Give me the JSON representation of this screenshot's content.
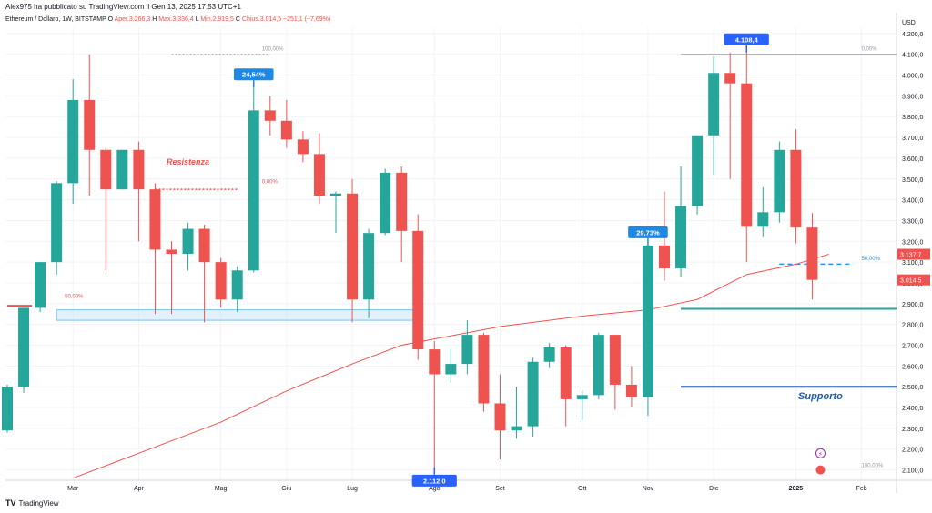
{
  "header": {
    "published": "Alex975 ha pubblicato su TradingView.com il Gen 13, 2025 17:53 UTC+1",
    "symbol": "Ethereum / Dollaro, 1W, BITSTAMP",
    "o_label": "O",
    "open": "Aper.3.266,3",
    "high": "Max.3.336,4",
    "low": "Min.2.919,5",
    "close": "Chius.3.014,5",
    "change": "−251,1 (−7,69%)"
  },
  "footer": {
    "brand": "TradingView"
  },
  "chart_data": {
    "type": "candlestick",
    "currency": "USD",
    "y_range": [
      2050,
      4230
    ],
    "y_ticks": [
      "2.100,0",
      "2.200,0",
      "2.300,0",
      "2.400,0",
      "2.500,0",
      "2.600,0",
      "2.700,0",
      "2.800,0",
      "2.900,0",
      "3.000,0",
      "3.100,0",
      "3.200,0",
      "3.300,0",
      "3.400,0",
      "3.500,0",
      "3.600,0",
      "3.700,0",
      "3.800,0",
      "3.900,0",
      "4.000,0",
      "4.100,0",
      "4.200,0"
    ],
    "x_ticks": [
      {
        "label": "Mar",
        "week": 4
      },
      {
        "label": "Apr",
        "week": 8
      },
      {
        "label": "Mag",
        "week": 13
      },
      {
        "label": "Giu",
        "week": 17
      },
      {
        "label": "Lug",
        "week": 21
      },
      {
        "label": "Ago",
        "week": 26
      },
      {
        "label": "Set",
        "week": 30
      },
      {
        "label": "Ott",
        "week": 35
      },
      {
        "label": "Nov",
        "week": 39
      },
      {
        "label": "Dic",
        "week": 43
      },
      {
        "label": "2025",
        "week": 48
      },
      {
        "label": "Feb",
        "week": 52
      }
    ],
    "candles": [
      {
        "o": 2290,
        "h": 2510,
        "l": 2280,
        "c": 2500
      },
      {
        "o": 2500,
        "h": 2880,
        "l": 2470,
        "c": 2880
      },
      {
        "o": 2880,
        "h": 3100,
        "l": 2860,
        "c": 3100
      },
      {
        "o": 3100,
        "h": 3490,
        "l": 3040,
        "c": 3480
      },
      {
        "o": 3480,
        "h": 3980,
        "l": 3380,
        "c": 3880
      },
      {
        "o": 3880,
        "h": 4100,
        "l": 3420,
        "c": 3640
      },
      {
        "o": 3640,
        "h": 3650,
        "l": 3060,
        "c": 3450
      },
      {
        "o": 3450,
        "h": 3640,
        "l": 3450,
        "c": 3640
      },
      {
        "o": 3640,
        "h": 3680,
        "l": 3200,
        "c": 3450
      },
      {
        "o": 3450,
        "h": 3480,
        "l": 2850,
        "c": 3160
      },
      {
        "o": 3160,
        "h": 3200,
        "l": 2850,
        "c": 3140
      },
      {
        "o": 3140,
        "h": 3290,
        "l": 3060,
        "c": 3260
      },
      {
        "o": 3260,
        "h": 3280,
        "l": 2810,
        "c": 3100
      },
      {
        "o": 3100,
        "h": 3120,
        "l": 2880,
        "c": 2920
      },
      {
        "o": 2920,
        "h": 3080,
        "l": 2860,
        "c": 3060
      },
      {
        "o": 3060,
        "h": 3940,
        "l": 3050,
        "c": 3830
      },
      {
        "o": 3830,
        "h": 3900,
        "l": 3710,
        "c": 3780
      },
      {
        "o": 3780,
        "h": 3880,
        "l": 3650,
        "c": 3690
      },
      {
        "o": 3690,
        "h": 3730,
        "l": 3580,
        "c": 3620
      },
      {
        "o": 3620,
        "h": 3720,
        "l": 3380,
        "c": 3420
      },
      {
        "o": 3420,
        "h": 3440,
        "l": 3240,
        "c": 3430
      },
      {
        "o": 3430,
        "h": 3500,
        "l": 2810,
        "c": 2920
      },
      {
        "o": 2920,
        "h": 3260,
        "l": 2830,
        "c": 3240
      },
      {
        "o": 3240,
        "h": 3550,
        "l": 3230,
        "c": 3530
      },
      {
        "o": 3530,
        "h": 3560,
        "l": 3100,
        "c": 3250
      },
      {
        "o": 3250,
        "h": 3330,
        "l": 2630,
        "c": 2680
      },
      {
        "o": 2680,
        "h": 2720,
        "l": 2112,
        "c": 2560
      },
      {
        "o": 2560,
        "h": 2680,
        "l": 2520,
        "c": 2610
      },
      {
        "o": 2610,
        "h": 2820,
        "l": 2560,
        "c": 2750
      },
      {
        "o": 2750,
        "h": 2760,
        "l": 2380,
        "c": 2420
      },
      {
        "o": 2420,
        "h": 2560,
        "l": 2150,
        "c": 2290
      },
      {
        "o": 2290,
        "h": 2500,
        "l": 2250,
        "c": 2310
      },
      {
        "o": 2310,
        "h": 2640,
        "l": 2260,
        "c": 2620
      },
      {
        "o": 2620,
        "h": 2710,
        "l": 2590,
        "c": 2690
      },
      {
        "o": 2690,
        "h": 2700,
        "l": 2310,
        "c": 2440
      },
      {
        "o": 2440,
        "h": 2480,
        "l": 2340,
        "c": 2460
      },
      {
        "o": 2460,
        "h": 2760,
        "l": 2440,
        "c": 2750
      },
      {
        "o": 2750,
        "h": 2750,
        "l": 2390,
        "c": 2510
      },
      {
        "o": 2510,
        "h": 2600,
        "l": 2400,
        "c": 2450
      },
      {
        "o": 2450,
        "h": 3180,
        "l": 2360,
        "c": 3180
      },
      {
        "o": 3180,
        "h": 3440,
        "l": 3010,
        "c": 3070
      },
      {
        "o": 3070,
        "h": 3560,
        "l": 3030,
        "c": 3370
      },
      {
        "o": 3370,
        "h": 3710,
        "l": 3330,
        "c": 3710
      },
      {
        "o": 3710,
        "h": 4090,
        "l": 3520,
        "c": 4010
      },
      {
        "o": 4010,
        "h": 4108.4,
        "l": 3500,
        "c": 3960
      },
      {
        "o": 3960,
        "h": 4108.4,
        "l": 3100,
        "c": 3270
      },
      {
        "o": 3270,
        "h": 3460,
        "l": 3220,
        "c": 3340
      },
      {
        "o": 3340,
        "h": 3680,
        "l": 3290,
        "c": 3640
      },
      {
        "o": 3640,
        "h": 3740,
        "l": 3190,
        "c": 3266.3
      },
      {
        "o": 3266.3,
        "h": 3336.4,
        "l": 2919.5,
        "c": 3014.5
      }
    ],
    "ma_series": [
      {
        "week": 4,
        "v": 2060
      },
      {
        "week": 8,
        "v": 2180
      },
      {
        "week": 13,
        "v": 2330
      },
      {
        "week": 17,
        "v": 2480
      },
      {
        "week": 21,
        "v": 2610
      },
      {
        "week": 24,
        "v": 2700
      },
      {
        "week": 26,
        "v": 2730
      },
      {
        "week": 30,
        "v": 2790
      },
      {
        "week": 35,
        "v": 2840
      },
      {
        "week": 39,
        "v": 2870
      },
      {
        "week": 42,
        "v": 2920
      },
      {
        "week": 45,
        "v": 3040
      },
      {
        "week": 48,
        "v": 3090
      },
      {
        "week": 50,
        "v": 3137.7
      }
    ],
    "lines": [
      {
        "name": "support-line",
        "y": 2500,
        "color": "#1e5bb8",
        "from_week": 41
      },
      {
        "name": "mid-line",
        "y": 2875,
        "color": "#26a69a",
        "from_week": 41
      },
      {
        "name": "high-fib-line",
        "y": 4100,
        "color": "#b2b5be",
        "from_week": 41
      },
      {
        "name": "left-red-line",
        "y": 2890,
        "color": "#ef5350",
        "from_week": 0,
        "to_week": 1.5
      }
    ],
    "dashed_lines": [
      {
        "name": "resistance-dotted",
        "y": 3450,
        "color": "#ef5350",
        "from_week": 9,
        "to_week": 14
      },
      {
        "name": "fifty-percent-dashed",
        "y": 3090,
        "color": "#2196f3",
        "from_week": 47,
        "to_week": 51.5
      },
      {
        "name": "top-dotted",
        "y": 4100,
        "color": "#b2b5be",
        "from_week": 10,
        "to_week": 16
      }
    ],
    "zone": {
      "name": "support-zone",
      "y_low": 2820,
      "y_high": 2870,
      "from_week": 3,
      "to_week": 25,
      "color": "#bde0f7"
    },
    "labels": [
      {
        "name": "fib-top-label-left",
        "text": "100,00%",
        "week": 15.5,
        "y": 4110,
        "color": "#9598a1"
      },
      {
        "name": "fib-top-label-right",
        "text": "0,00%",
        "week": 52,
        "y": 4110,
        "color": "#9598a1"
      },
      {
        "name": "resistance-percent-label",
        "text": "0,00%",
        "week": 15.5,
        "y": 3470,
        "color": "#ef5350"
      },
      {
        "name": "left-percent-label",
        "text": "50,00%",
        "week": 3.5,
        "y": 2920,
        "color": "#ef5350"
      },
      {
        "name": "right-percent-label",
        "text": "50,00%",
        "week": 52,
        "y": 3100,
        "color": "#2196f3"
      },
      {
        "name": "bottom-percent-label",
        "text": "100,00%",
        "week": 52,
        "y": 2105,
        "color": "#9598a1"
      }
    ],
    "annotations": [
      {
        "name": "resistance-text",
        "text": "Resistenza",
        "week": 11,
        "y": 3570,
        "color": "#ef5350"
      },
      {
        "name": "support-text",
        "text": "Supporto",
        "week": 49.5,
        "y": 2440,
        "color": "#1e5bb8"
      }
    ],
    "callouts": [
      {
        "name": "callout-4108",
        "text": "4.108,4",
        "week": 45,
        "y": 4108.4,
        "pointer": "down",
        "color": "#2962ff"
      },
      {
        "name": "callout-2112",
        "text": "2.112,0",
        "week": 26,
        "y": 2112,
        "pointer": "up",
        "color": "#2962ff"
      },
      {
        "name": "callout-2454",
        "text": "24,54%",
        "week": 15,
        "y": 3940,
        "pointer": "down",
        "color": "#1e88e5"
      },
      {
        "name": "callout-2973",
        "text": "29,73%",
        "week": 39,
        "y": 3180,
        "pointer": "down",
        "color": "#1e88e5"
      }
    ],
    "price_tags": [
      {
        "name": "ma-price-tag",
        "text": "3.137,7",
        "y": 3137.7,
        "color": "#ef5350"
      },
      {
        "name": "close-price-tag",
        "text": "3.014,5",
        "y": 3014.5,
        "color": "#ef5350"
      }
    ],
    "colors": {
      "up": "#26a69a",
      "down": "#ef5350",
      "ma": "#ef5350",
      "grid": "#f0f3fa",
      "axis_text": "#131722"
    }
  }
}
